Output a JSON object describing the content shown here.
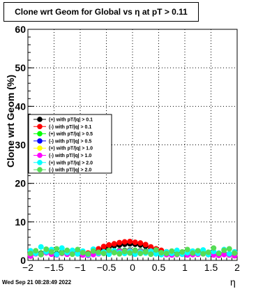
{
  "title": "Clone wrt Geom for Global vs   η at pT > 0.11",
  "footer_timestamp": "Wed Sep 21 08:28:49 2022",
  "chart_data": {
    "type": "scatter",
    "title": "Clone wrt Geom for Global vs   η at pT > 0.11",
    "xlabel": "η",
    "ylabel": "Clone wrt Geom (%)",
    "xlim": [
      -2,
      2
    ],
    "ylim": [
      0,
      60
    ],
    "x_ticks": [
      "−2",
      "−1.5",
      "−1",
      "−0.5",
      "0",
      "0.5",
      "1",
      "1.5",
      "2"
    ],
    "y_ticks": [
      "0",
      "10",
      "20",
      "30",
      "40",
      "50",
      "60"
    ],
    "grid": true,
    "legend_position": "left-middle",
    "x": [
      -1.95,
      -1.85,
      -1.75,
      -1.65,
      -1.55,
      -1.45,
      -1.35,
      -1.25,
      -1.15,
      -1.05,
      -0.95,
      -0.85,
      -0.75,
      -0.65,
      -0.55,
      -0.45,
      -0.35,
      -0.25,
      -0.15,
      -0.05,
      0.05,
      0.15,
      0.25,
      0.35,
      0.45,
      0.55,
      0.65,
      0.75,
      0.85,
      0.95,
      1.05,
      1.15,
      1.25,
      1.35,
      1.45,
      1.55,
      1.65,
      1.75,
      1.85,
      1.95
    ],
    "series": [
      {
        "name": "(+) with pT/|q| > 0.1",
        "color": "#000000",
        "marker": "circle",
        "values": [
          1.5,
          2,
          1.8,
          2.2,
          1.9,
          1.7,
          2,
          1.8,
          2.1,
          1.9,
          1.6,
          1.8,
          2,
          2.5,
          3,
          3.5,
          3.8,
          4,
          4.2,
          4.3,
          4.2,
          4,
          3.7,
          3.2,
          2.8,
          2.5,
          2.2,
          2,
          1.8,
          1.7,
          1.6,
          1.8,
          1.7,
          1.9,
          1.8,
          1.6,
          1.5,
          1.7,
          1.6,
          1.4
        ]
      },
      {
        "name": "(-) with pT/|q| > 0.1",
        "color": "#ff0000",
        "marker": "circle",
        "values": [
          1.2,
          1.8,
          1.6,
          2,
          1.7,
          1.5,
          1.9,
          1.6,
          1.8,
          1.7,
          1.5,
          1.9,
          2.3,
          3,
          3.6,
          4,
          4.3,
          4.6,
          4.8,
          4.9,
          4.7,
          4.5,
          4.1,
          3.5,
          3,
          2.6,
          2.2,
          1.9,
          1.7,
          1.6,
          1.5,
          1.7,
          1.6,
          1.8,
          1.6,
          1.5,
          1.4,
          1.6,
          1.5,
          1.3
        ]
      },
      {
        "name": "(+) with pT/|q| > 0.5",
        "color": "#00ff00",
        "marker": "circle",
        "values": [
          1.6,
          2.1,
          1.9,
          2.4,
          2,
          1.8,
          2.2,
          2,
          2.3,
          2,
          1.7,
          1.6,
          1.8,
          2,
          2.2,
          2.4,
          2.5,
          2.6,
          2.6,
          2.7,
          2.6,
          2.5,
          2.4,
          2.2,
          2,
          1.9,
          1.8,
          1.7,
          1.8,
          1.9,
          1.7,
          1.8,
          1.9,
          2,
          1.8,
          1.7,
          1.6,
          1.8,
          1.7,
          1.5
        ]
      },
      {
        "name": "(-) with pT/|q| > 0.5",
        "color": "#0000ff",
        "marker": "circle",
        "values": [
          1.4,
          1.9,
          1.7,
          2.2,
          1.8,
          1.6,
          2,
          1.8,
          2.1,
          1.9,
          1.6,
          1.5,
          1.7,
          1.9,
          2.1,
          2.3,
          2.4,
          2.5,
          2.5,
          2.6,
          2.5,
          2.4,
          2.3,
          2.1,
          1.9,
          1.8,
          1.7,
          1.6,
          1.7,
          1.8,
          1.6,
          1.7,
          1.8,
          1.9,
          1.7,
          1.6,
          1.5,
          1.7,
          1.6,
          1.4
        ]
      },
      {
        "name": "(+) with pT/|q| > 1.0",
        "color": "#ffff00",
        "marker": "circle",
        "values": [
          1.3,
          1.8,
          1.6,
          2.1,
          1.7,
          1.5,
          1.9,
          1.7,
          2,
          1.8,
          1.5,
          1.4,
          1.6,
          1.8,
          2,
          2.2,
          2.3,
          2.4,
          2.4,
          2.5,
          2.4,
          2.3,
          2.2,
          2,
          1.8,
          1.7,
          1.6,
          1.5,
          1.6,
          1.7,
          1.5,
          1.6,
          1.7,
          1.8,
          1.6,
          1.5,
          1.4,
          1.6,
          1.5,
          1.3
        ]
      },
      {
        "name": "(-) with pT/|q| > 1.0",
        "color": "#ff00ff",
        "marker": "circle",
        "values": [
          1.1,
          1.7,
          1.5,
          2,
          1.6,
          1.4,
          1.8,
          1.6,
          1.9,
          1.7,
          1.4,
          1.3,
          1.5,
          1.7,
          1.9,
          2.1,
          2.2,
          2.3,
          2.3,
          2.4,
          2.3,
          2.2,
          2.1,
          1.9,
          1.7,
          1.6,
          1.5,
          1.4,
          1.5,
          1.6,
          1.4,
          1.5,
          1.6,
          1.7,
          1.5,
          1.4,
          1.3,
          1.5,
          1.4,
          1.2
        ]
      },
      {
        "name": "(+) with pT/|q| > 2.0",
        "color": "#00ffff",
        "marker": "circle",
        "values": [
          2.5,
          1.8,
          3.5,
          2.2,
          2.8,
          1.5,
          3.2,
          2,
          2.6,
          1.7,
          2.4,
          1.5,
          2.9,
          1.8,
          2.2,
          1.6,
          2.5,
          2,
          1.8,
          2.3,
          1.6,
          2.1,
          1.9,
          2.4,
          1.7,
          1.5,
          2.2,
          1.8,
          2.6,
          1.6,
          2,
          2.4,
          1.8,
          2.7,
          1.5,
          2.3,
          1.9,
          2.8,
          1.7,
          2.2
        ]
      },
      {
        "name": "(-) with pT/|q| > 2.0",
        "color": "#55dd55",
        "marker": "circle",
        "values": [
          1.8,
          2.5,
          1.5,
          2.9,
          2.2,
          3,
          1.9,
          2.6,
          1.6,
          2.8,
          2,
          1.7,
          2.4,
          2.1,
          1.8,
          2.6,
          2,
          1.7,
          2.3,
          1.9,
          2.5,
          1.8,
          2.2,
          1.6,
          2.7,
          2,
          1.8,
          2.4,
          1.6,
          2.2,
          2.8,
          1.9,
          2.5,
          1.7,
          2.1,
          3.2,
          1.8,
          2.6,
          3,
          1.9
        ]
      }
    ]
  }
}
